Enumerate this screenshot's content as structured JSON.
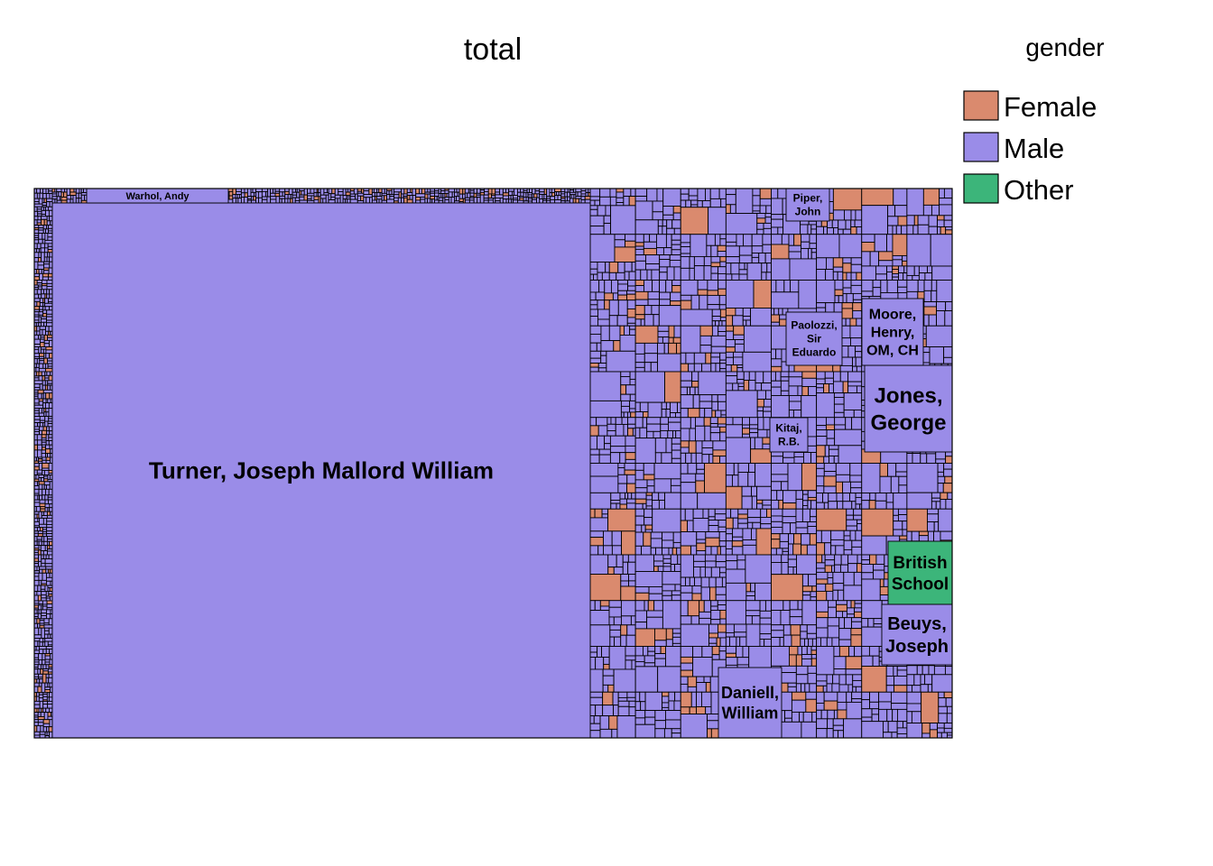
{
  "chart_data": {
    "type": "treemap",
    "title": "total",
    "legend": {
      "title": "gender",
      "position": "top-right",
      "entries": [
        {
          "label": "Female",
          "color": "#DA8A6E"
        },
        {
          "label": "Male",
          "color": "#9A8CE8"
        },
        {
          "label": "Other",
          "color": "#3CB57A"
        }
      ]
    },
    "labeled_tiles": [
      {
        "artist": "Turner, Joseph Mallord William",
        "gender": "Male",
        "label": "Turner, Joseph Mallord William"
      },
      {
        "artist": "Warhol, Andy",
        "gender": "Male",
        "label": "Warhol, Andy"
      },
      {
        "artist": "Jones, George",
        "gender": "Male",
        "label": "Jones, George"
      },
      {
        "artist": "Moore, Henry, OM, CH",
        "gender": "Male",
        "label": "Moore, Henry, OM, CH"
      },
      {
        "artist": "Paolozzi, Sir Eduardo",
        "gender": "Male",
        "label": "Paolozzi, Sir Eduardo"
      },
      {
        "artist": "Piper, John",
        "gender": "Male",
        "label": "Piper, John"
      },
      {
        "artist": "Kitaj, R.B.",
        "gender": "Male",
        "label": "Kitaj, R.B."
      },
      {
        "artist": "British School",
        "gender": "Other",
        "label": "British School"
      },
      {
        "artist": "Beuys, Joseph",
        "gender": "Male",
        "label": "Beuys, Joseph"
      },
      {
        "artist": "Daniell, William",
        "gender": "Male",
        "label": "Daniell, William"
      }
    ]
  }
}
